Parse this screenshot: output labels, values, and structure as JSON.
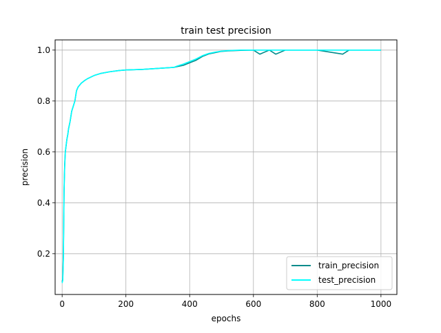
{
  "chart_data": {
    "type": "line",
    "title": "train test precision",
    "xlabel": "epochs",
    "ylabel": "precision",
    "xlim": [
      -22,
      1050
    ],
    "ylim": [
      0.04,
      1.04
    ],
    "x_ticks": [
      0,
      200,
      400,
      600,
      800,
      1000
    ],
    "y_ticks": [
      0.2,
      0.4,
      0.6,
      0.8,
      1.0
    ],
    "x_tick_labels": [
      "0",
      "200",
      "400",
      "600",
      "800",
      "1000"
    ],
    "y_tick_labels": [
      "0.2",
      "0.4",
      "0.6",
      "0.8",
      "1.0"
    ],
    "grid": true,
    "legend_position": "bottom-right",
    "series": [
      {
        "name": "train_precision",
        "color": "#008b8b",
        "x": [
          0,
          2,
          4,
          6,
          8,
          10,
          12,
          15,
          18,
          20,
          25,
          30,
          35,
          40,
          45,
          50,
          60,
          70,
          80,
          100,
          120,
          150,
          180,
          200,
          250,
          300,
          350,
          360,
          380,
          400,
          420,
          440,
          460,
          480,
          500,
          520,
          540,
          560,
          600,
          620,
          650,
          670,
          700,
          800,
          880,
          900,
          1000
        ],
        "values": [
          0.09,
          0.1,
          0.2,
          0.45,
          0.55,
          0.6,
          0.62,
          0.65,
          0.67,
          0.69,
          0.72,
          0.76,
          0.78,
          0.8,
          0.84,
          0.855,
          0.87,
          0.88,
          0.888,
          0.9,
          0.908,
          0.915,
          0.92,
          0.922,
          0.924,
          0.928,
          0.932,
          0.935,
          0.94,
          0.95,
          0.96,
          0.975,
          0.985,
          0.99,
          0.995,
          0.997,
          0.998,
          0.999,
          1.0,
          0.984,
          1.0,
          0.984,
          1.0,
          1.0,
          0.984,
          1.0,
          1.0
        ]
      },
      {
        "name": "test_precision",
        "color": "#00ffff",
        "x": [
          0,
          2,
          4,
          6,
          8,
          10,
          12,
          15,
          18,
          20,
          25,
          30,
          35,
          40,
          45,
          50,
          60,
          70,
          80,
          100,
          120,
          150,
          180,
          200,
          250,
          300,
          350,
          360,
          380,
          400,
          420,
          440,
          460,
          480,
          500,
          520,
          540,
          560,
          600,
          700,
          800,
          900,
          1000
        ],
        "values": [
          0.085,
          0.095,
          0.19,
          0.44,
          0.54,
          0.6,
          0.62,
          0.65,
          0.67,
          0.69,
          0.72,
          0.76,
          0.78,
          0.8,
          0.84,
          0.855,
          0.87,
          0.88,
          0.888,
          0.9,
          0.908,
          0.915,
          0.92,
          0.922,
          0.924,
          0.928,
          0.932,
          0.937,
          0.945,
          0.955,
          0.965,
          0.978,
          0.987,
          0.992,
          0.996,
          0.998,
          0.999,
          1.0,
          1.0,
          1.0,
          1.0,
          1.0,
          1.0
        ]
      }
    ]
  }
}
